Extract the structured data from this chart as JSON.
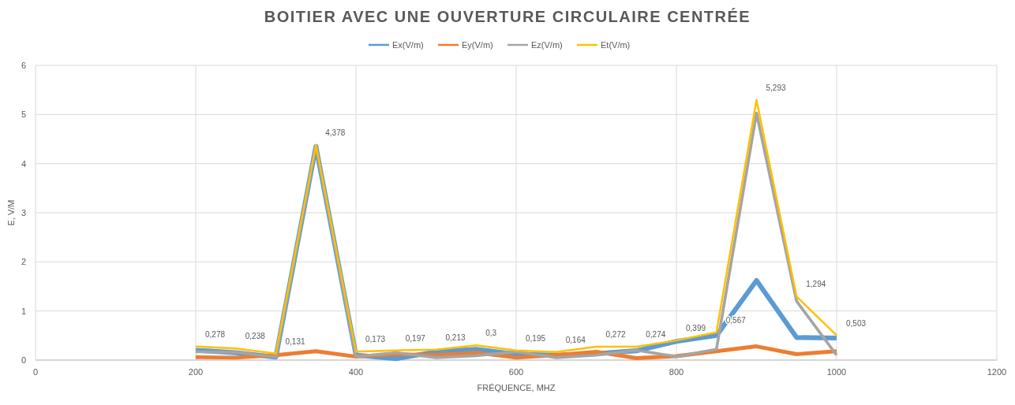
{
  "chart_data": {
    "type": "line",
    "title": "BOITIER AVEC UNE OUVERTURE CIRCULAIRE CENTRÉE",
    "xlabel": "FRÉQUENCE, MHZ",
    "ylabel": "E, V/M",
    "x": [
      200,
      250,
      300,
      350,
      400,
      450,
      500,
      550,
      600,
      650,
      700,
      750,
      800,
      850,
      900,
      950,
      1000
    ],
    "series": [
      {
        "name": "Ex(V/m)",
        "color": "#5b9bd5",
        "values": [
          0.2,
          0.15,
          0.06,
          4.35,
          0.1,
          0.03,
          0.17,
          0.22,
          0.12,
          0.1,
          0.13,
          0.19,
          0.38,
          0.5,
          1.62,
          0.46,
          0.45
        ]
      },
      {
        "name": "Ey(V/m)",
        "color": "#ed7d31",
        "values": [
          0.06,
          0.05,
          0.1,
          0.18,
          0.07,
          0.12,
          0.1,
          0.15,
          0.05,
          0.1,
          0.17,
          0.04,
          0.08,
          0.18,
          0.28,
          0.12,
          0.18
        ]
      },
      {
        "name": "Ez(V/m)",
        "color": "#a5a5a5",
        "values": [
          0.17,
          0.16,
          0.06,
          4.36,
          0.07,
          0.15,
          0.05,
          0.09,
          0.17,
          0.05,
          0.1,
          0.2,
          0.07,
          0.22,
          5.03,
          1.2,
          0.1
        ]
      },
      {
        "name": "Et(V/m)",
        "color": "#ffc000",
        "values": [
          0.278,
          0.238,
          0.131,
          4.378,
          0.173,
          0.197,
          0.213,
          0.3,
          0.195,
          0.164,
          0.272,
          0.274,
          0.399,
          0.567,
          5.293,
          1.294,
          0.503
        ],
        "value_labels": [
          "0,278",
          "0,238",
          "0,131",
          "4,378",
          "0,173",
          "0,197",
          "0,213",
          "0,3",
          "0,195",
          "0,164",
          "0,272",
          "0,274",
          "0,399",
          "0,567",
          "5,293",
          "1,294",
          "0,503"
        ]
      }
    ],
    "xlim": [
      0,
      1200
    ],
    "xticks": [
      0,
      200,
      400,
      600,
      800,
      1000,
      1200
    ],
    "ylim": [
      0,
      6
    ],
    "yticks": [
      0,
      1,
      2,
      3,
      4,
      5,
      6
    ],
    "grid": true,
    "legend": "top",
    "marker": "none",
    "line_style": "solid"
  }
}
